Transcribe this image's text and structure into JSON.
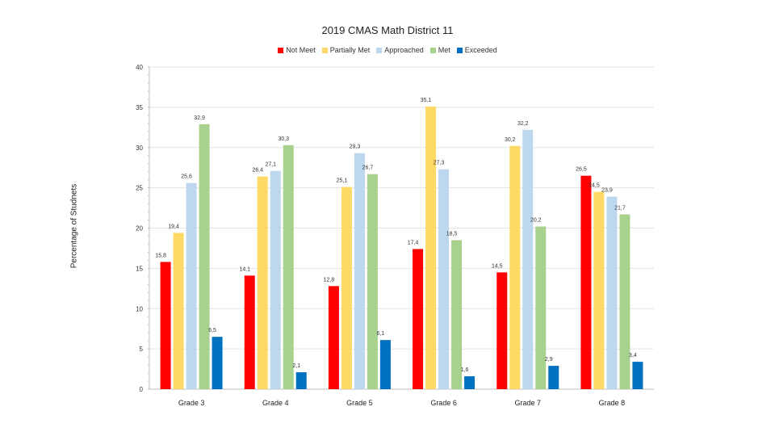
{
  "chart_data": {
    "type": "bar",
    "title": "2019 CMAS Math District 11",
    "ylabel": "Percentage of Studnets",
    "xlabel": "",
    "ylim": [
      0,
      40
    ],
    "yticks": [
      0,
      5,
      10,
      15,
      20,
      25,
      30,
      35,
      40
    ],
    "categories": [
      "Grade 3",
      "Grade 4",
      "Grade 5",
      "Grade 6",
      "Grade 7",
      "Grade 8"
    ],
    "legend_position": "top",
    "grid": true,
    "series": [
      {
        "name": "Not Meet",
        "color": "#ff0000",
        "values": [
          15.8,
          14.1,
          12.8,
          17.4,
          14.5,
          26.5
        ],
        "labels": [
          "15,8",
          "14,1",
          "12,8",
          "17,4",
          "14,5",
          "26,5"
        ]
      },
      {
        "name": "Partially Met",
        "color": "#ffd966",
        "values": [
          19.4,
          26.4,
          25.1,
          35.1,
          30.2,
          24.5
        ],
        "labels": [
          "19,4",
          "26,4",
          "25,1",
          "35,1",
          "30,2",
          "24,5"
        ]
      },
      {
        "name": "Approached",
        "color": "#bdd7ee",
        "values": [
          25.6,
          27.1,
          29.3,
          27.3,
          32.2,
          23.9
        ],
        "labels": [
          "25,6",
          "27,1",
          "29,3",
          "27,3",
          "32,2",
          "23,9"
        ]
      },
      {
        "name": "Met",
        "color": "#a9d18e",
        "values": [
          32.9,
          30.3,
          26.7,
          18.5,
          20.2,
          21.7
        ],
        "labels": [
          "32,9",
          "30,3",
          "26,7",
          "18,5",
          "20,2",
          "21,7"
        ]
      },
      {
        "name": "Exceeded",
        "color": "#0070c0",
        "values": [
          6.5,
          2.1,
          6.1,
          1.6,
          2.9,
          3.4
        ],
        "labels": [
          "6,5",
          "2,1",
          "6,1",
          "1,6",
          "2,9",
          "3,4"
        ]
      }
    ]
  }
}
